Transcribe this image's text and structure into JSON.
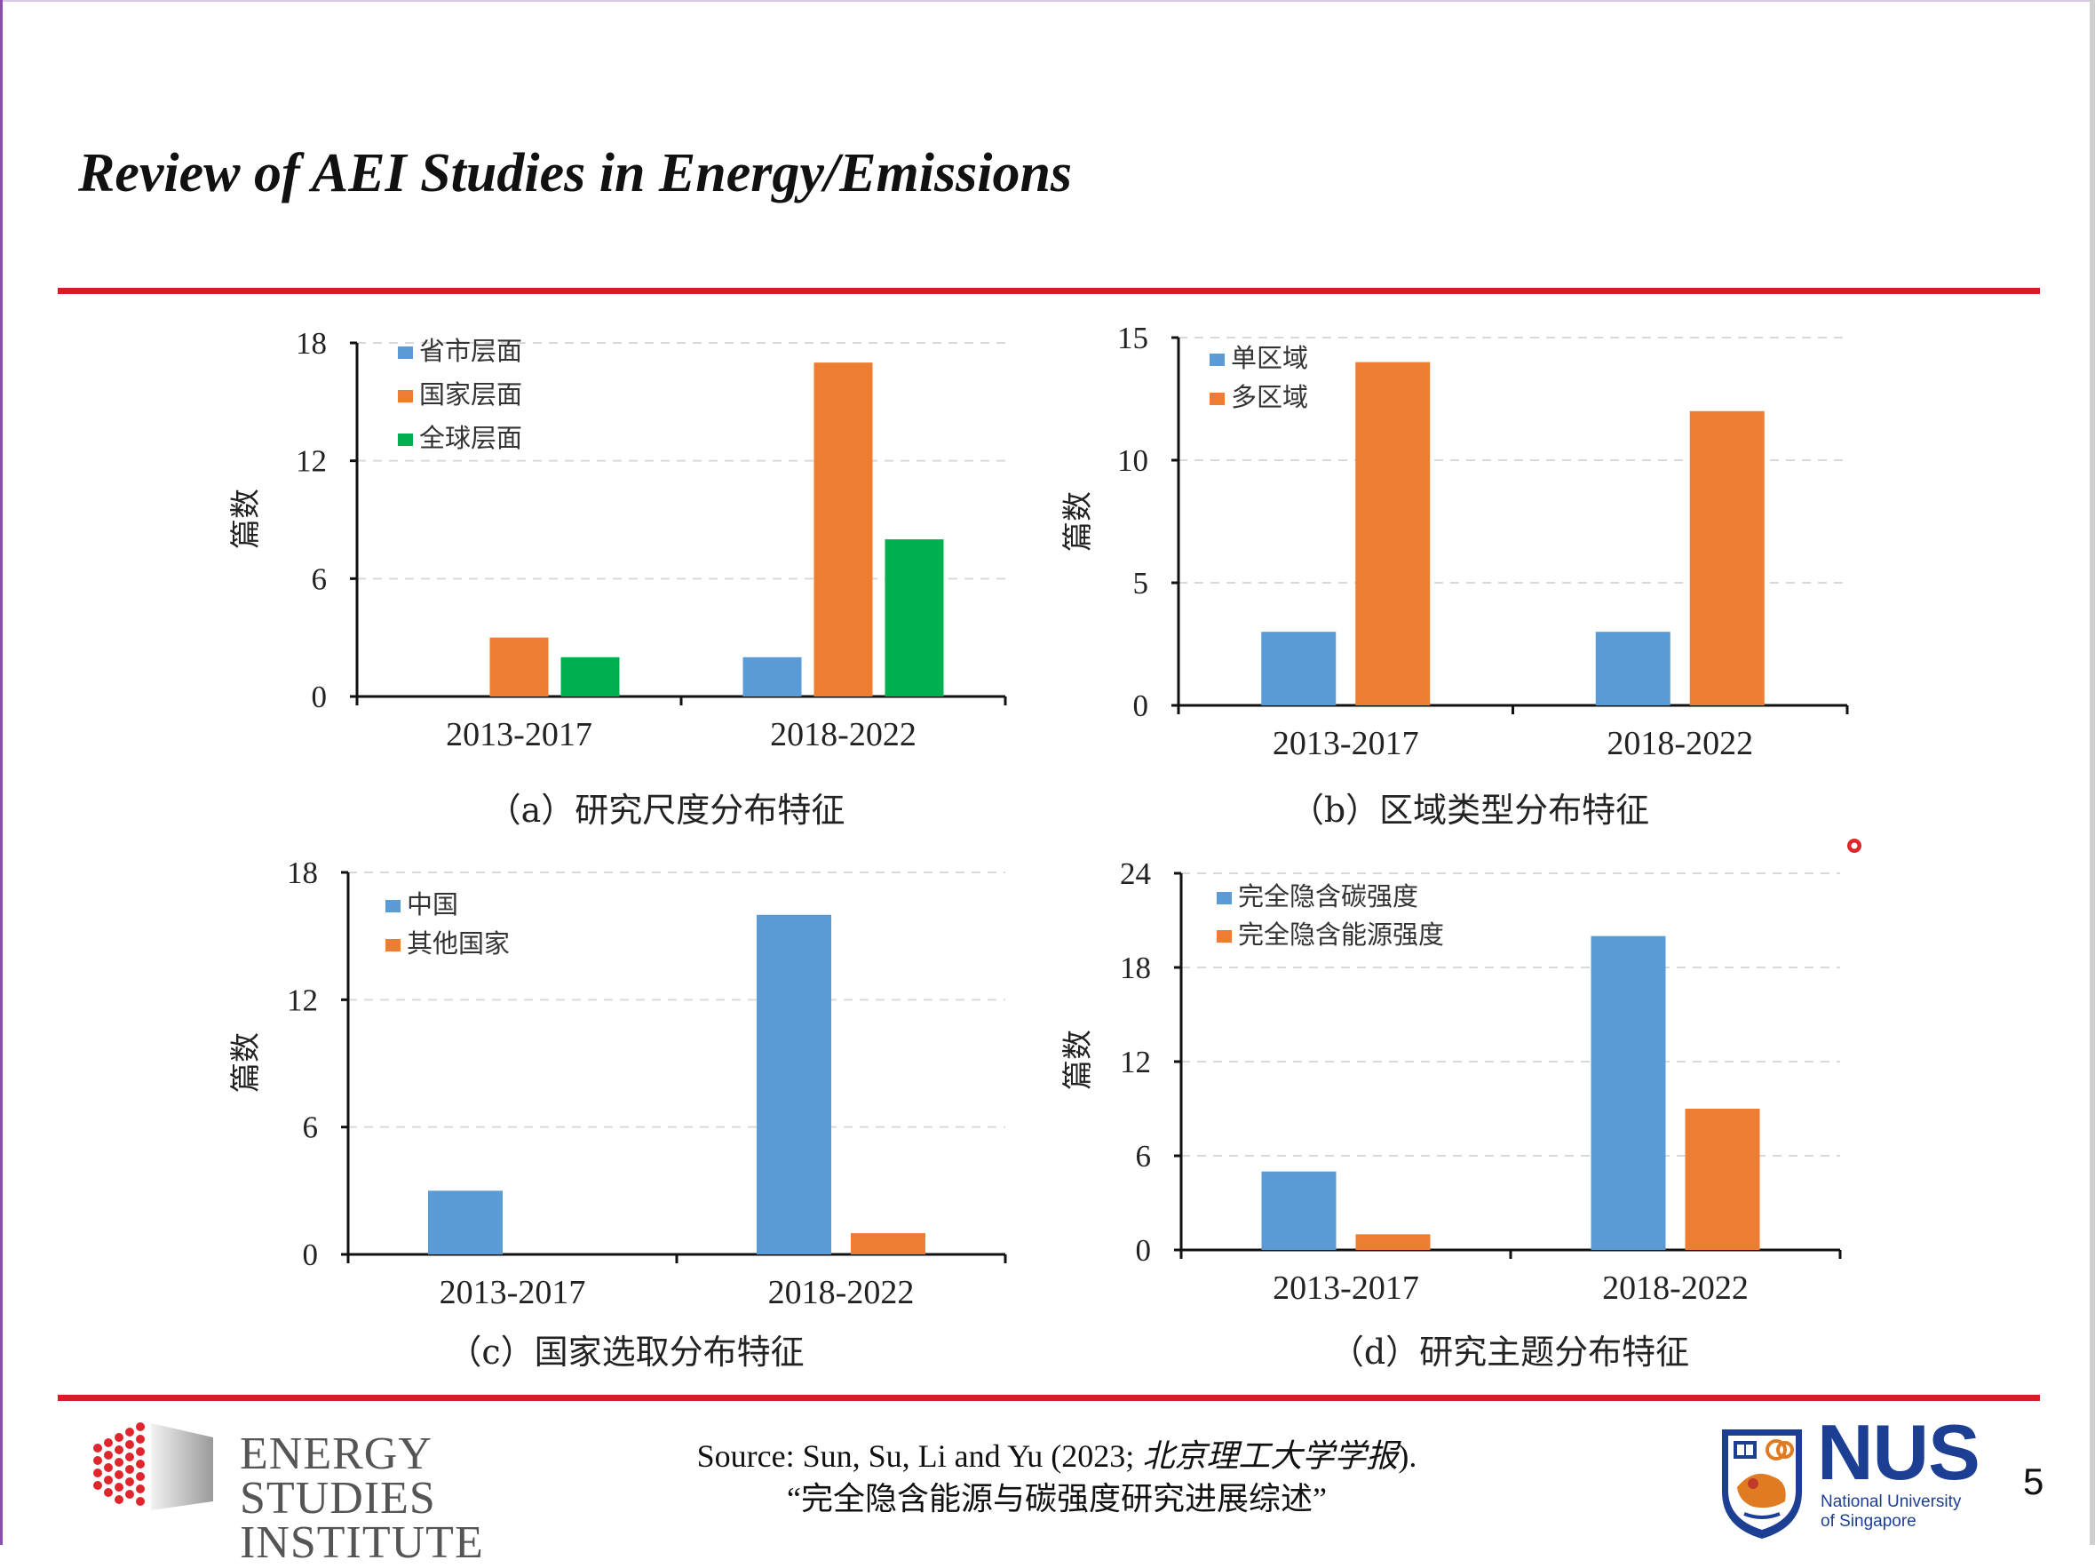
{
  "slide": {
    "title": "Review of AEI Studies in Energy/Emissions",
    "page_number": "5"
  },
  "colors": {
    "accent_red": "#d41f26",
    "blue": "#5b9bd5",
    "orange": "#ed7d31",
    "green": "#00b050",
    "nus_blue": "#1c3f94"
  },
  "chart_data": [
    {
      "type": "bar",
      "caption": "（a）研究尺度分布特征",
      "ylabel": "篇数",
      "categories": [
        "2013-2017",
        "2018-2022"
      ],
      "series": [
        {
          "name": "省市层面",
          "color": "#5b9bd5",
          "values": [
            0,
            2
          ]
        },
        {
          "name": "国家层面",
          "color": "#ed7d31",
          "values": [
            3,
            17
          ]
        },
        {
          "name": "全球层面",
          "color": "#00b050",
          "values": [
            2,
            8
          ]
        }
      ],
      "ylim": [
        0,
        18
      ],
      "yticks": [
        "0",
        "6",
        "12",
        "18"
      ],
      "grid": "dashed-horizontal",
      "legend": "top-left"
    },
    {
      "type": "bar",
      "caption": "（b）区域类型分布特征",
      "ylabel": "篇数",
      "categories": [
        "2013-2017",
        "2018-2022"
      ],
      "series": [
        {
          "name": "单区域",
          "color": "#5b9bd5",
          "values": [
            3,
            3
          ]
        },
        {
          "name": "多区域",
          "color": "#ed7d31",
          "values": [
            14,
            12
          ]
        }
      ],
      "ylim": [
        0,
        15
      ],
      "yticks": [
        "0",
        "5",
        "10",
        "15"
      ],
      "grid": "dashed-horizontal",
      "legend": "top-left"
    },
    {
      "type": "bar",
      "caption": "（c）国家选取分布特征",
      "ylabel": "篇数",
      "categories": [
        "2013-2017",
        "2018-2022"
      ],
      "series": [
        {
          "name": "中国",
          "color": "#5b9bd5",
          "values": [
            3,
            16
          ]
        },
        {
          "name": "其他国家",
          "color": "#ed7d31",
          "values": [
            0,
            1
          ]
        }
      ],
      "ylim": [
        0,
        18
      ],
      "yticks": [
        "0",
        "6",
        "12",
        "18"
      ],
      "grid": "dashed-horizontal",
      "legend": "top-left"
    },
    {
      "type": "bar",
      "caption": "（d）研究主题分布特征",
      "ylabel": "篇数",
      "categories": [
        "2013-2017",
        "2018-2022"
      ],
      "series": [
        {
          "name": "完全隐含碳强度",
          "color": "#5b9bd5",
          "values": [
            5,
            20
          ]
        },
        {
          "name": "完全隐含能源强度",
          "color": "#ed7d31",
          "values": [
            1,
            9
          ]
        }
      ],
      "ylim": [
        0,
        24
      ],
      "yticks": [
        "0",
        "6",
        "12",
        "18",
        "24"
      ],
      "grid": "dashed-horizontal",
      "legend": "top-left"
    }
  ],
  "footer": {
    "source_prefix": "Source: Sun, Su, Li and Yu (2023; ",
    "source_journal": "北京理工大学学报",
    "source_suffix": ").",
    "source_title": "“完全隐含能源与碳强度研究进展综述”",
    "esi_line1": "ENERGY",
    "esi_line2": "STUDIES",
    "esi_line3": "INSTITUTE",
    "nus_word": "NUS",
    "nus_sub1": "National University",
    "nus_sub2": "of Singapore"
  }
}
